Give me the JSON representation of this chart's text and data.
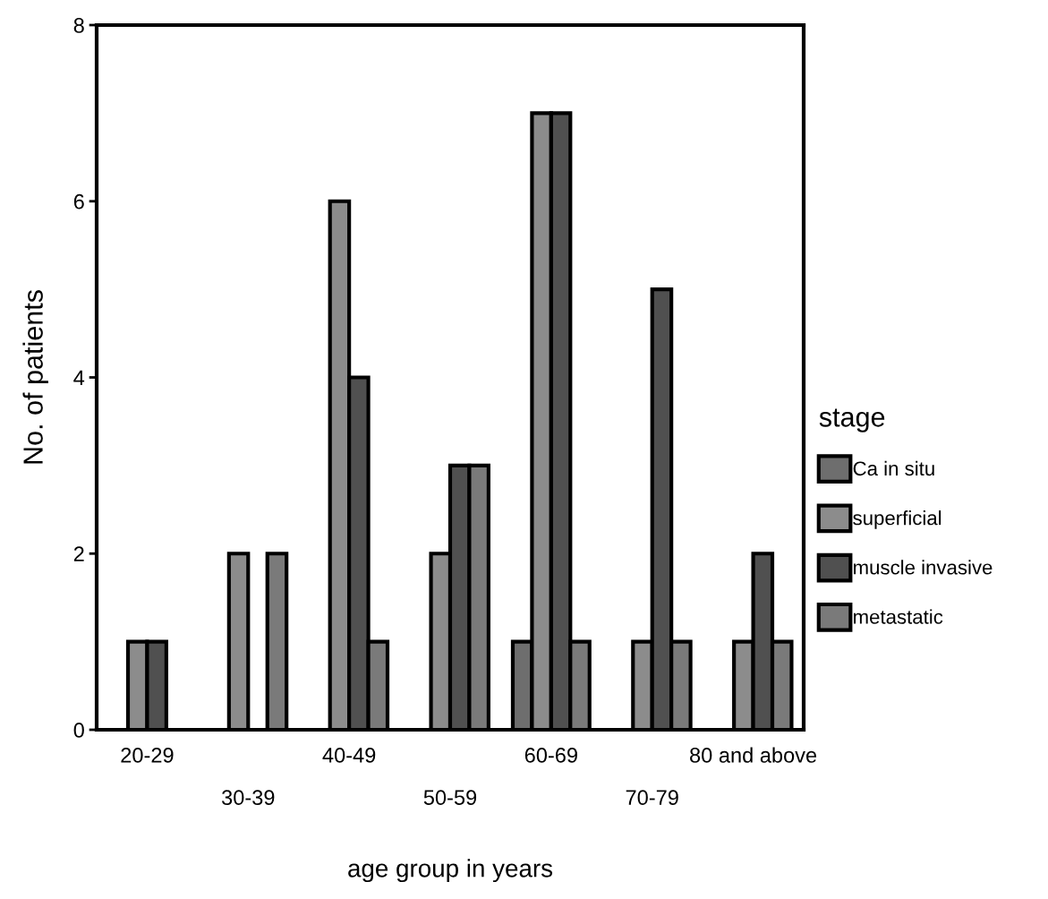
{
  "chart_data": {
    "type": "bar",
    "xlabel": "age group in years",
    "ylabel": "No. of patients",
    "legend_title": "stage",
    "categories": [
      "20-29",
      "30-39",
      "40-49",
      "50-59",
      "60-69",
      "70-79",
      "80 and above"
    ],
    "series": [
      {
        "name": "Ca in situ",
        "color": "#6e6e6e",
        "values": [
          0,
          0,
          0,
          0,
          1,
          0,
          0
        ]
      },
      {
        "name": "superficial",
        "color": "#8c8c8c",
        "values": [
          1,
          2,
          6,
          2,
          7,
          1,
          1
        ]
      },
      {
        "name": "muscle invasive",
        "color": "#505050",
        "values": [
          1,
          0,
          4,
          3,
          7,
          5,
          2
        ]
      },
      {
        "name": "metastatic",
        "color": "#7a7a7a",
        "values": [
          0,
          2,
          1,
          3,
          1,
          1,
          1
        ]
      }
    ],
    "ylim": [
      0,
      8
    ],
    "yticks": [
      0,
      2,
      4,
      6,
      8
    ],
    "grid": false,
    "legend": "right"
  }
}
